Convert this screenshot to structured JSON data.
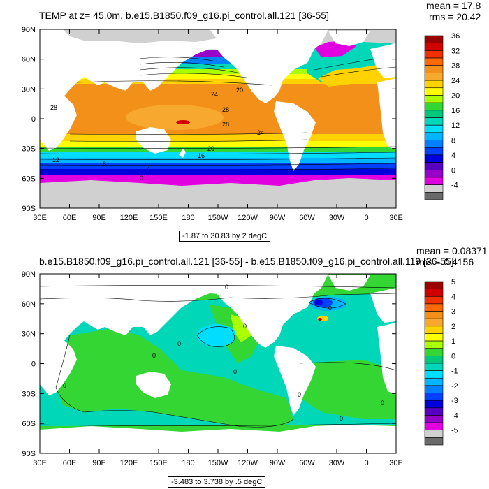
{
  "chart_data": [
    {
      "type": "heatmap",
      "title": "TEMP at z=  45.0m, b.e15.B1850.f09_g16.pi_control.all.121 [36-55]",
      "stats": {
        "mean": "mean = 17.8",
        "rms": "rms = 20.42"
      },
      "note": "-1.87 to 30.83 by 2 degC",
      "x_ticks": [
        "30E",
        "60E",
        "90E",
        "120E",
        "150E",
        "180",
        "150W",
        "120W",
        "90W",
        "60W",
        "30W",
        "0",
        "30E"
      ],
      "y_ticks": [
        "90N",
        "60N",
        "30N",
        "0",
        "30S",
        "60S",
        "90S"
      ],
      "xlim": [
        30,
        390
      ],
      "ylim": [
        -90,
        90
      ],
      "colorbar": {
        "labels": [
          "36",
          "32",
          "28",
          "24",
          "20",
          "16",
          "12",
          "8",
          "4",
          "0",
          "-4"
        ],
        "colors": [
          "#990000",
          "#d00000",
          "#f03000",
          "#ff6a00",
          "#f39019",
          "#f6a92e",
          "#ffd200",
          "#ffff00",
          "#aaff00",
          "#33d633",
          "#00c87a",
          "#00d7b9",
          "#00ddff",
          "#00b4ff",
          "#0080ff",
          "#0040ff",
          "#0000dd",
          "#5800c0",
          "#9600c8",
          "#e000e0",
          "#d0d0d0",
          "#6a6a6a"
        ]
      },
      "contour_labels": [
        "28",
        "24",
        "20",
        "16",
        "12",
        "8",
        "4",
        "0",
        "20",
        "24",
        "28",
        "28"
      ]
    },
    {
      "type": "heatmap",
      "title": "b.e15.B1850.f09_g16.pi_control.all.121 [36-55] - b.e15.B1850.f09_g16.pi_control.all.119 [36-55]",
      "stats": {
        "mean": "mean = 0.08371",
        "rms": "rms = 0.4156"
      },
      "note": "-3.483 to 3.738 by .5 degC",
      "x_ticks": [
        "30E",
        "60E",
        "90E",
        "120E",
        "150E",
        "180",
        "150W",
        "120W",
        "90W",
        "60W",
        "30W",
        "0",
        "30E"
      ],
      "y_ticks": [
        "90N",
        "60N",
        "30N",
        "0",
        "30S",
        "60S",
        "90S"
      ],
      "xlim": [
        30,
        390
      ],
      "ylim": [
        -90,
        90
      ],
      "colorbar": {
        "labels": [
          "5",
          "4",
          "3",
          "2",
          "1",
          "0",
          "-1",
          "-2",
          "-3",
          "-4",
          "-5"
        ],
        "colors": [
          "#990000",
          "#d00000",
          "#f03000",
          "#ff6a00",
          "#f39019",
          "#f6a92e",
          "#ffd200",
          "#ffff00",
          "#aaff00",
          "#33d633",
          "#00c87a",
          "#00d7b9",
          "#00ddff",
          "#00b4ff",
          "#0080ff",
          "#0040ff",
          "#0000dd",
          "#5800c0",
          "#9600c8",
          "#e000e0",
          "#d0d0d0",
          "#6a6a6a"
        ]
      },
      "contour_labels": [
        "0",
        "0",
        "0",
        "0",
        "0",
        "0",
        "0",
        "0",
        "0",
        "0"
      ]
    }
  ]
}
